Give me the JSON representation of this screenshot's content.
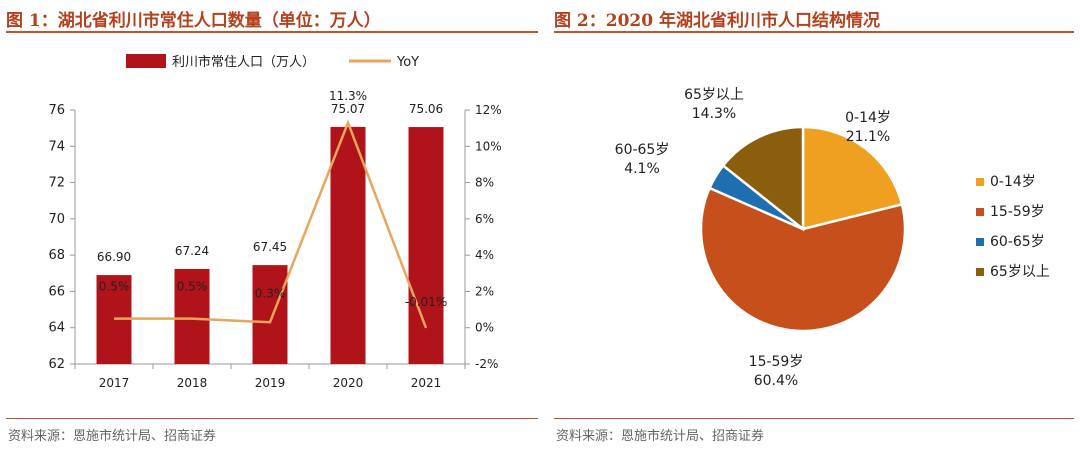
{
  "fig1": {
    "title": "图 1：湖北省利川市常住人口数量（单位：万人）",
    "source": "资料来源：恩施市统计局、招商证券"
  },
  "fig2": {
    "title": "图 2：2020 年湖北省利川市人口结构情况",
    "source": "资料来源：恩施市统计局、招商证券"
  },
  "chart_data": [
    {
      "type": "bar",
      "title": "图 1：湖北省利川市常住人口数量（单位：万人）",
      "categories": [
        "2017",
        "2018",
        "2019",
        "2020",
        "2021"
      ],
      "series": [
        {
          "name": "利川市常住人口（万人）",
          "type": "bar",
          "axis": "left",
          "color": "#b0141a",
          "values": [
            66.9,
            67.24,
            67.45,
            75.07,
            75.06
          ],
          "labels": [
            "66.90",
            "67.24",
            "67.45",
            "75.07",
            "75.06"
          ]
        },
        {
          "name": "YoY",
          "type": "line",
          "axis": "right",
          "color": "#e8a65c",
          "values": [
            0.5,
            0.5,
            0.3,
            11.3,
            -0.01
          ],
          "labels": [
            "0.5%",
            "0.5%",
            "0.3%",
            "11.3%",
            "-0.01%"
          ]
        }
      ],
      "ylim": [
        62,
        76
      ],
      "yticks": [
        "62",
        "64",
        "66",
        "68",
        "70",
        "72",
        "74",
        "76"
      ],
      "y2lim": [
        -2,
        12
      ],
      "y2ticks": [
        "-2%",
        "0%",
        "2%",
        "4%",
        "6%",
        "8%",
        "10%",
        "12%"
      ],
      "legend": "top"
    },
    {
      "type": "pie",
      "title": "图 2：2020 年湖北省利川市人口结构情况",
      "slices": [
        {
          "label": "0-14岁",
          "value": 21.1,
          "display": "21.1%",
          "color": "#f0a020"
        },
        {
          "label": "15-59岁",
          "value": 60.4,
          "display": "60.4%",
          "color": "#c64f1b"
        },
        {
          "label": "60-65岁",
          "value": 4.1,
          "display": "4.1%",
          "color": "#1f6fb0"
        },
        {
          "label": "65岁以上",
          "value": 14.3,
          "display": "14.3%",
          "color": "#8b5e0e"
        }
      ],
      "legend": "right"
    }
  ]
}
